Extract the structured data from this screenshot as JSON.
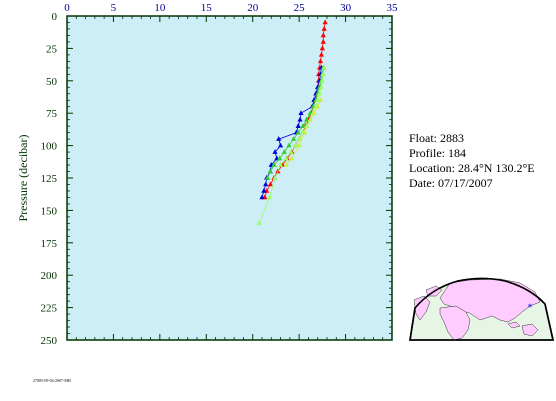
{
  "chart_data": {
    "type": "scatter",
    "xlabel": "",
    "ylabel": "Pressure (decibar)",
    "xlim": [
      0,
      35
    ],
    "ylim": [
      250,
      0
    ],
    "x_ticks": [
      "0",
      "5",
      "10",
      "15",
      "20",
      "25",
      "30",
      "35"
    ],
    "y_ticks": [
      "0",
      "25",
      "50",
      "75",
      "100",
      "125",
      "150",
      "175",
      "200",
      "225",
      "250"
    ],
    "series": [
      {
        "color": "#ff0000",
        "points": [
          [
            27.8,
            5
          ],
          [
            27.7,
            10
          ],
          [
            27.6,
            15
          ],
          [
            27.6,
            20
          ],
          [
            27.5,
            25
          ],
          [
            27.4,
            30
          ],
          [
            27.3,
            35
          ],
          [
            27.2,
            40
          ],
          [
            27.1,
            45
          ],
          [
            27.1,
            50
          ],
          [
            27.0,
            55
          ],
          [
            26.9,
            60
          ],
          [
            26.7,
            65
          ],
          [
            26.5,
            70
          ],
          [
            26.3,
            75
          ],
          [
            26.0,
            80
          ],
          [
            25.7,
            85
          ],
          [
            25.4,
            90
          ],
          [
            25.0,
            95
          ],
          [
            24.6,
            100
          ],
          [
            24.2,
            105
          ],
          [
            23.7,
            110
          ],
          [
            23.2,
            115
          ],
          [
            22.7,
            120
          ],
          [
            22.3,
            125
          ],
          [
            21.9,
            130
          ],
          [
            21.5,
            135
          ],
          [
            21.3,
            140
          ]
        ]
      },
      {
        "color": "#0000dd",
        "points": [
          [
            27.4,
            40
          ],
          [
            27.3,
            45
          ],
          [
            27.2,
            50
          ],
          [
            27.0,
            55
          ],
          [
            26.8,
            60
          ],
          [
            26.6,
            65
          ],
          [
            26.4,
            70
          ],
          [
            25.2,
            75
          ],
          [
            25.1,
            80
          ],
          [
            24.9,
            85
          ],
          [
            24.7,
            90
          ],
          [
            22.8,
            95
          ],
          [
            23.0,
            100
          ],
          [
            22.4,
            105
          ],
          [
            22.6,
            110
          ],
          [
            22.0,
            115
          ],
          [
            21.9,
            120
          ],
          [
            21.5,
            125
          ],
          [
            21.4,
            130
          ],
          [
            21.2,
            135
          ],
          [
            21.0,
            140
          ]
        ]
      },
      {
        "color": "#33cc33",
        "points": [
          [
            27.6,
            40
          ],
          [
            27.5,
            45
          ],
          [
            27.4,
            50
          ],
          [
            27.2,
            55
          ],
          [
            27.0,
            60
          ],
          [
            26.8,
            65
          ],
          [
            26.5,
            70
          ],
          [
            26.2,
            75
          ],
          [
            25.8,
            80
          ],
          [
            25.4,
            85
          ],
          [
            24.9,
            90
          ],
          [
            24.4,
            95
          ],
          [
            23.9,
            100
          ],
          [
            23.4,
            105
          ],
          [
            22.9,
            110
          ],
          [
            22.3,
            115
          ],
          [
            21.9,
            120
          ],
          [
            21.6,
            125
          ]
        ]
      },
      {
        "color": "#99ff66",
        "points": [
          [
            27.7,
            40
          ],
          [
            27.6,
            45
          ],
          [
            27.5,
            50
          ],
          [
            27.4,
            55
          ],
          [
            27.2,
            60
          ],
          [
            27.0,
            65
          ],
          [
            26.8,
            70
          ],
          [
            26.5,
            75
          ],
          [
            26.2,
            80
          ],
          [
            25.8,
            85
          ],
          [
            25.4,
            90
          ],
          [
            25.0,
            95
          ],
          [
            24.6,
            100
          ],
          [
            24.1,
            105
          ],
          [
            23.6,
            110
          ],
          [
            23.0,
            115
          ],
          [
            22.4,
            125
          ],
          [
            21.8,
            140
          ],
          [
            20.7,
            160
          ]
        ]
      },
      {
        "color": "#ccee44",
        "points": [
          [
            27.3,
            65
          ],
          [
            27.0,
            70
          ],
          [
            26.6,
            75
          ],
          [
            26.2,
            80
          ],
          [
            25.6,
            90
          ],
          [
            25.0,
            100
          ],
          [
            24.2,
            110
          ],
          [
            23.6,
            115
          ]
        ]
      }
    ]
  },
  "info": {
    "float": "Float:  2883",
    "profile": "Profile:  184",
    "location": "Location:  28.4°N  130.2°E",
    "date": "Date:  07/17/2007"
  },
  "footer_code": "27085-09-04-2007-MH",
  "colors": {
    "plot_background": "#cdeef7",
    "frame": "#003300",
    "x_tick_labels": "#000099",
    "y_tick_labels": "#003300",
    "land": "#ffccff",
    "ocean": "#e6f5e6"
  }
}
